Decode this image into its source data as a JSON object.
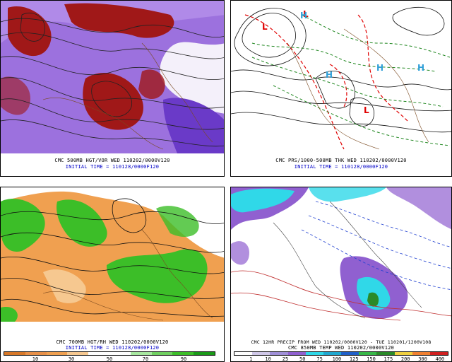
{
  "panels": [
    {
      "id": "p500",
      "caption_line1": "CMC 500MB HGT/VOR WED 110202/0000V120",
      "caption_line2": "INITIAL TIME = 110128/0000F120"
    },
    {
      "id": "pprs",
      "caption_line1": "CMC PRS/1000-500MB THK WED 110202/0000V120",
      "caption_line2": "INITIAL TIME = 110128/0000F120",
      "labels": [
        "L",
        "L",
        "L",
        "H",
        "H",
        "H",
        "H"
      ]
    },
    {
      "id": "p700",
      "caption_line1": "CMC 700MB HGT/RH WED 110202/0000V120",
      "caption_line2": "INITIAL TIME = 110128/0000F120",
      "scale_ticks": [
        "10",
        "30",
        "50",
        "70",
        "90"
      ]
    },
    {
      "id": "pprecip",
      "caption_line1": "CMC 12HR PRECIP FROM WED 110202/0000V120 - TUE 110201/1200V108",
      "caption_line2": "CMC 850MB TEMP WED 110202/0000V120",
      "scale_ticks": [
        "1",
        "10",
        "25",
        "50",
        "75",
        "100",
        "125",
        "150",
        "175",
        "200",
        "300",
        "400"
      ]
    }
  ],
  "colors": {
    "vorticity_dark": "#a01818",
    "vorticity_purple": "#8c5ad8",
    "rh_green": "#3cbe28",
    "rh_orange": "#f0a050",
    "precip_cyan": "#30d8e8",
    "precip_purple": "#9060d0",
    "caption_blue": "#0000c8",
    "low_red": "#e00000",
    "high_cyan": "#30a0d8"
  }
}
